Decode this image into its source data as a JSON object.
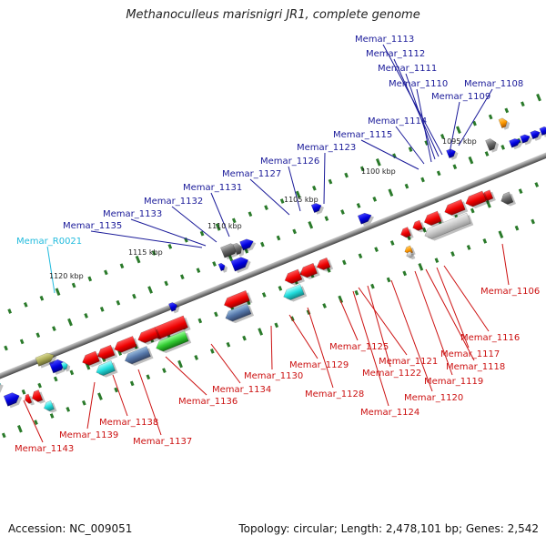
{
  "title": "Methanoculleus marisnigri JR1, complete genome",
  "footer": {
    "accession_label": "Accession:",
    "accession": "NC_009051",
    "topology_label": "Topology:",
    "topology": "circular",
    "length_label": "Length:",
    "length": "2,478,101 bp",
    "genes_label": "Genes:",
    "genes": "2,542"
  },
  "colors": {
    "forward_label": "#1a1a99",
    "reverse_label": "#cc1111",
    "rna_label": "#22bbdd",
    "backbone": "#8a8a8a",
    "tick": "#2a7a2a"
  },
  "scale_labels": [
    "1095 kbp",
    "1100 kbp",
    "1105 kbp",
    "1110 kbp",
    "1115 kbp",
    "1120 kbp"
  ],
  "forward_genes": [
    "Memar_1113",
    "Memar_1112",
    "Memar_1111",
    "Memar_1110",
    "Memar_1109",
    "Memar_1108",
    "Memar_1114",
    "Memar_1115",
    "Memar_1123",
    "Memar_1126",
    "Memar_1127",
    "Memar_1131",
    "Memar_1132",
    "Memar_1133",
    "Memar_1135"
  ],
  "rna_genes": [
    "Memar_R0021"
  ],
  "reverse_genes": [
    "Memar_1106",
    "Memar_1116",
    "Memar_1117",
    "Memar_1118",
    "Memar_1119",
    "Memar_1120",
    "Memar_1121",
    "Memar_1122",
    "Memar_1124",
    "Memar_1125",
    "Memar_1128",
    "Memar_1129",
    "Memar_1130",
    "Memar_1134",
    "Memar_1136",
    "Memar_1137",
    "Memar_1138",
    "Memar_1139",
    "Memar_1143"
  ]
}
